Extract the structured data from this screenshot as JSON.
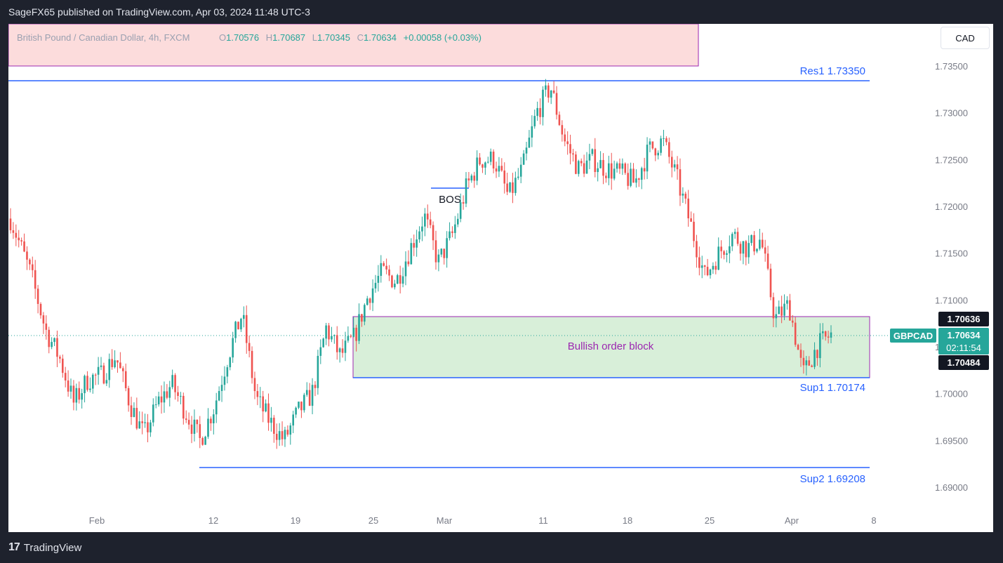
{
  "header": {
    "published": "SageFX65 published on TradingView.com, Apr 03, 2024 11:48 UTC-3"
  },
  "footer": {
    "brand": "TradingView"
  },
  "legend": {
    "symbol": "British Pound / Canadian Dollar, 4h, FXCM",
    "o_label": "O",
    "o": "1.70576",
    "h_label": "H",
    "h": "1.70687",
    "l_label": "L",
    "l": "1.70345",
    "c_label": "C",
    "c": "1.70634",
    "change": "+0.00058 (+0.03%)"
  },
  "currency_button": "CAD",
  "colors": {
    "up": "#26a69a",
    "down": "#ef5350",
    "level_line": "#2962ff",
    "order_block_fill": "#d8efd9",
    "order_block_border": "#9c27b0",
    "label_blue": "#2962ff",
    "tick_text": "#787b86"
  },
  "chart_data": {
    "type": "candlestick",
    "timeframe": "4h",
    "price_axis": {
      "ticks": [
        "1.73500",
        "1.73000",
        "1.72500",
        "1.72000",
        "1.71500",
        "1.71000",
        "1.70500",
        "1.70000",
        "1.69500",
        "1.69000"
      ],
      "range": [
        1.6875,
        1.7375
      ]
    },
    "time_axis": {
      "ticks": [
        "Feb",
        "12",
        "19",
        "25",
        "Mar",
        "11",
        "18",
        "25",
        "Apr",
        "8"
      ]
    },
    "levels": [
      {
        "name": "Res1",
        "label": "Res1 1.73350",
        "value": 1.7335
      },
      {
        "name": "Sup1",
        "label": "Sup1 1.70174",
        "value": 1.70174
      },
      {
        "name": "Sup2",
        "label": "Sup2 1.69208",
        "value": 1.69208
      }
    ],
    "order_block": {
      "label": "Bullish order block",
      "top": 1.70836,
      "bottom": 1.70174
    },
    "bos": {
      "label": "BOS",
      "value": 1.722
    },
    "price_tags": {
      "ask": "1.70636",
      "symbol": "GBPCAD",
      "last": "1.70634",
      "countdown": "02:11:54",
      "bid": "1.70484"
    },
    "close_points": [
      [
        0,
        1.7187
      ],
      [
        0.03,
        1.7125
      ],
      [
        0.05,
        1.7068
      ],
      [
        0.07,
        1.7038
      ],
      [
        0.09,
        1.699
      ],
      [
        0.11,
        1.7015
      ],
      [
        0.13,
        1.702
      ],
      [
        0.15,
        1.704
      ],
      [
        0.17,
        1.699
      ],
      [
        0.19,
        1.6955
      ],
      [
        0.21,
        1.699
      ],
      [
        0.23,
        1.701
      ],
      [
        0.25,
        1.698
      ],
      [
        0.27,
        1.695
      ],
      [
        0.29,
        1.6985
      ],
      [
        0.31,
        1.704
      ],
      [
        0.33,
        1.7085
      ],
      [
        0.35,
        1.6995
      ],
      [
        0.37,
        1.697
      ],
      [
        0.39,
        1.695
      ],
      [
        0.41,
        1.698
      ],
      [
        0.43,
        1.7
      ],
      [
        0.45,
        1.707
      ],
      [
        0.47,
        1.704
      ],
      [
        0.49,
        1.706
      ],
      [
        0.51,
        1.7105
      ],
      [
        0.53,
        1.713
      ],
      [
        0.55,
        1.712
      ],
      [
        0.57,
        1.7155
      ],
      [
        0.59,
        1.719
      ],
      [
        0.61,
        1.714
      ],
      [
        0.63,
        1.717
      ],
      [
        0.65,
        1.722
      ],
      [
        0.67,
        1.725
      ],
      [
        0.69,
        1.725
      ],
      [
        0.71,
        1.721
      ],
      [
        0.73,
        1.724
      ],
      [
        0.75,
        1.73
      ],
      [
        0.77,
        1.7328
      ],
      [
        0.79,
        1.727
      ],
      [
        0.81,
        1.724
      ],
      [
        0.83,
        1.725
      ],
      [
        0.85,
        1.724
      ],
      [
        0.87,
        1.7235
      ],
      [
        0.89,
        1.7225
      ],
      [
        0.91,
        1.726
      ],
      [
        0.93,
        1.727
      ],
      [
        0.95,
        1.723
      ],
      [
        0.97,
        1.718
      ],
      [
        0.99,
        1.7125
      ],
      [
        1.01,
        1.715
      ],
      [
        1.03,
        1.717
      ],
      [
        1.05,
        1.7155
      ],
      [
        1.07,
        1.7165
      ],
      [
        1.09,
        1.708
      ],
      [
        1.11,
        1.7095
      ],
      [
        1.13,
        1.702
      ],
      [
        1.15,
        1.705
      ],
      [
        1.17,
        1.7063
      ]
    ]
  }
}
